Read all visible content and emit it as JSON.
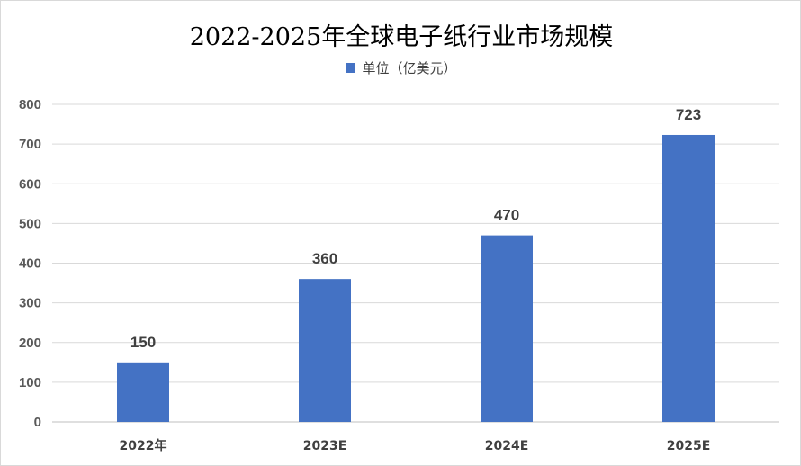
{
  "chart_data": {
    "type": "bar",
    "title": "2022-2025年全球电子纸行业市场规模",
    "categories": [
      "2022年",
      "2023E",
      "2024E",
      "2025E"
    ],
    "series": [
      {
        "name": "单位（亿美元）",
        "values": [
          150,
          360,
          470,
          723
        ],
        "color": "#4472c4"
      }
    ],
    "ylim": [
      0,
      800
    ],
    "yticks": [
      0,
      100,
      200,
      300,
      400,
      500,
      600,
      700,
      800
    ],
    "grid": true,
    "legend_position": "top",
    "data_labels": true
  }
}
